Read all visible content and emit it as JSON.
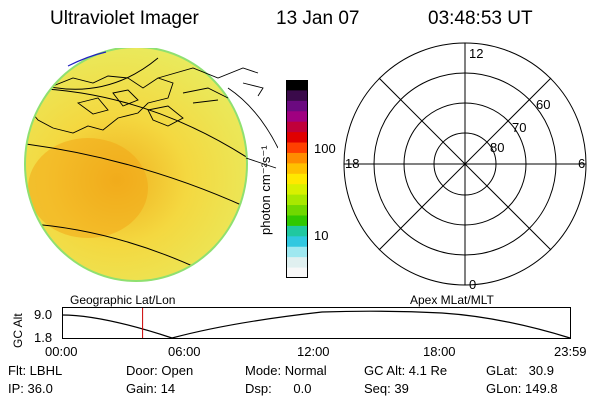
{
  "header": {
    "instrument": "Ultraviolet Imager",
    "date": "13 Jan 07",
    "time": "03:48:53 UT"
  },
  "colorbar": {
    "unit_label": "photon cm⁻²s⁻¹",
    "ticks": [
      "100",
      "10"
    ],
    "colors": [
      "#000000",
      "#3a0a4a",
      "#6b0a80",
      "#a00080",
      "#c0003a",
      "#e00000",
      "#ff4000",
      "#ff8c00",
      "#ffc000",
      "#ffe800",
      "#d8f000",
      "#a8e800",
      "#70d800",
      "#30c800",
      "#20c8a0",
      "#30c8e0",
      "#9ee8f0",
      "#e0f0f0",
      "#f8f8f8"
    ]
  },
  "polar": {
    "mlt_labels": [
      "12",
      "18",
      "6",
      "0"
    ],
    "lat_labels": [
      "60",
      "70",
      "80"
    ]
  },
  "panels": {
    "left_label": "Geographic Lat/Lon",
    "right_label": "Apex MLat/MLT"
  },
  "altitude_plot": {
    "axis_label": "GC Alt",
    "y_ticks": [
      "9.0",
      "1.8"
    ],
    "x_ticks": [
      "00:00",
      "06:00",
      "12:00",
      "18:00",
      "23:59"
    ],
    "marker_hours": 3.81
  },
  "info": {
    "flt": "Flt: LBHL",
    "ip": "IP: 36.0",
    "door": "Door: Open",
    "gain": "Gain: 14",
    "mode": "Mode: Normal",
    "dsp": "Dsp:      0.0",
    "gc_alt": "GC Alt: 4.1 Re",
    "seq": "Seq: 39",
    "glat": "GLat:   30.9",
    "glon": "GLon: 149.8"
  },
  "colors": {
    "globe_fill": "#e8e860",
    "marker_red": "#cc0000"
  }
}
